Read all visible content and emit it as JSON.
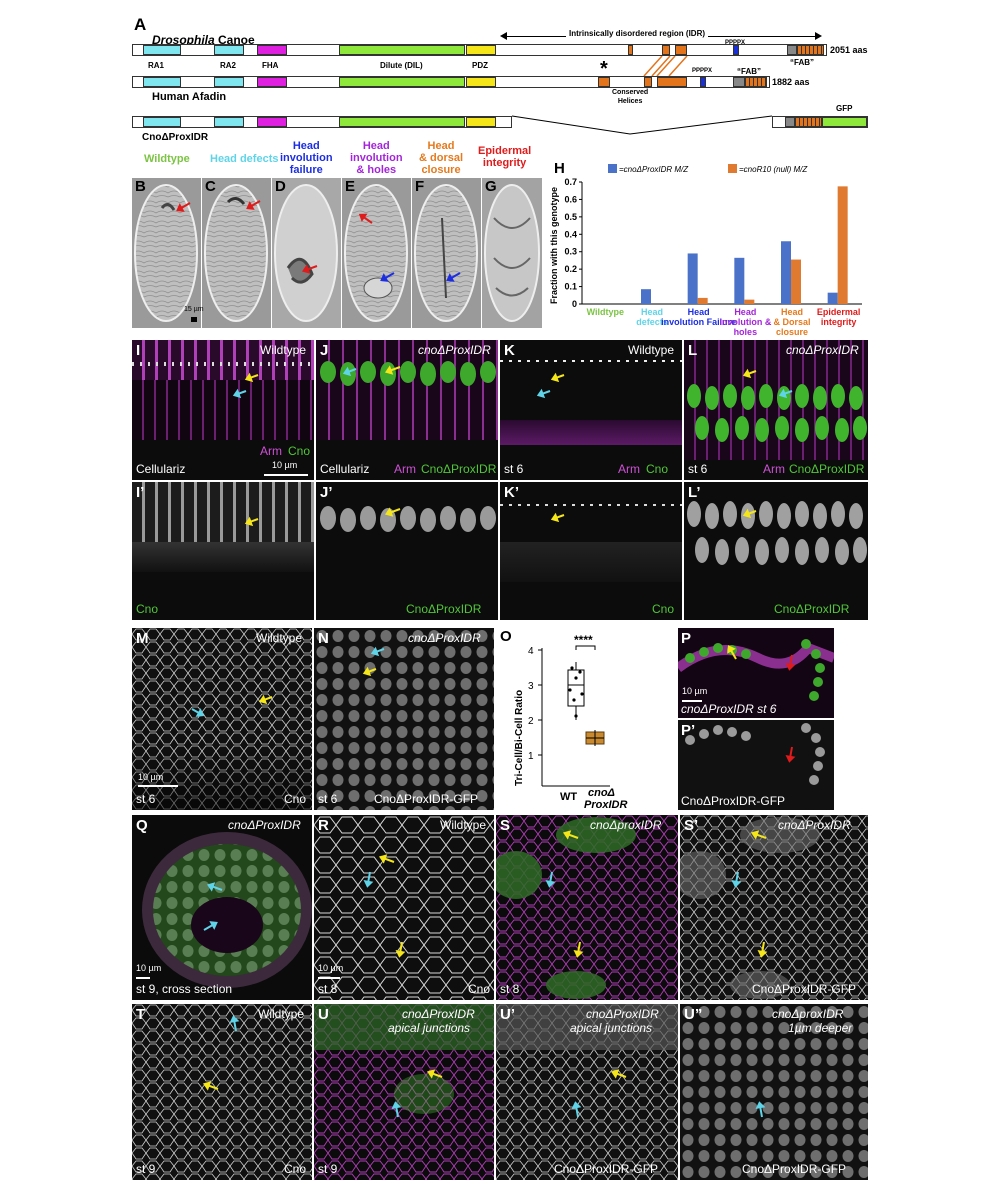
{
  "panelA": {
    "letter": "A",
    "canoe_title_italic": "Drosophila",
    "canoe_title": "Canoe",
    "idr_label": "Intrinsically disordered region (IDR)",
    "pppx_top": "PPPPX",
    "pppx_mid": "PPPPX",
    "fab_top": "“FAB”",
    "fab_mid": "“FAB”",
    "canoe_len": "2051 aas",
    "afadin_len": "1882 aas",
    "domains": [
      "RA1",
      "RA2",
      "FHA",
      "Dilute (DIL)",
      "PDZ"
    ],
    "afadin_title": "Human Afadin",
    "conserved": "Conserved\nHelices",
    "star": "*",
    "construct_label": "CnoΔProxIDR",
    "gfp": "GFP",
    "colors": {
      "ra": "#7fe6ef",
      "fha": "#e020e0",
      "dil": "#8ee83c",
      "pdz": "#f5e619",
      "idr": "#e3741c",
      "pro": "#1a2fd6",
      "fab": "#888888"
    }
  },
  "panelsBG": {
    "letters": [
      "B",
      "C",
      "D",
      "E",
      "F",
      "G"
    ],
    "titles": [
      "Wildtype",
      "Head defects",
      "Head\ninvolution\nfailure",
      "Head\ninvolution\n& holes",
      "Head\n& dorsal\nclosure",
      "Epidermal\nintegrity"
    ],
    "title_colors": [
      "#7cc444",
      "#5fd4e8",
      "#1c2ee0",
      "#a425d8",
      "#e57a1e",
      "#e01b1b"
    ],
    "scale": "15 µm"
  },
  "chart_data": {
    "type": "bar",
    "panel": "H",
    "categories": [
      "Wildtype",
      "Head defects",
      "Head involution Failure",
      "Head involution & holes",
      "Head & Dorsal closure",
      "Epidermal integrity"
    ],
    "category_colors": [
      "#7cc444",
      "#5fd4e8",
      "#1c2ee0",
      "#a425d8",
      "#e57a1e",
      "#e01b1b"
    ],
    "series": [
      {
        "name": "=cnoΔProxIDR M/Z",
        "color": "#4a72c8",
        "values": [
          0,
          0.085,
          0.29,
          0.265,
          0.36,
          0.065
        ]
      },
      {
        "name": "=cnoR10 (null) M/Z",
        "color": "#e07a30",
        "values": [
          0,
          0,
          0.035,
          0.025,
          0.255,
          0.675
        ]
      }
    ],
    "ylabel": "Fraction with this genotype",
    "ylim": [
      0,
      0.7
    ],
    "yticks": [
      "0",
      "0.1",
      "0.2",
      "0.3",
      "0.4",
      "0.5",
      "0.6",
      "0.7"
    ],
    "legend_position": "top"
  },
  "panelsIL": {
    "letters": [
      "I",
      "J",
      "K",
      "L",
      "I’",
      "J’",
      "K’",
      "L’"
    ],
    "I": {
      "genotype": "Wildtype",
      "stage": "Cellulariz",
      "arm": "Arm",
      "cno": "Cno",
      "scale": "10 µm"
    },
    "J": {
      "genotype": "cnoΔProxIDR",
      "stage": "Cellulariz",
      "arm": "Arm",
      "cno": "CnoΔProxIDR"
    },
    "K": {
      "genotype": "Wildtype",
      "stage": "st 6",
      "arm": "Arm",
      "cno": "Cno"
    },
    "L": {
      "genotype": "cnoΔProxIDR",
      "stage": "st 6",
      "arm": "Arm",
      "cno": "CnoΔProxIDR"
    },
    "bottom": [
      "Cno",
      "CnoΔProxIDR",
      "Cno",
      "CnoΔProxIDR"
    ]
  },
  "panelsMP": {
    "M": {
      "letter": "M",
      "genotype": "Wildtype",
      "stage": "st 6",
      "marker": "Cno",
      "scale": "10 µm"
    },
    "N": {
      "letter": "N",
      "genotype": "cnoΔProxIDR",
      "stage": "st 6",
      "marker": "CnoΔProxIDR-GFP"
    },
    "O": {
      "letter": "O",
      "ylabel": "Tri-Cell/Bi-Cell Ratio",
      "sig": "****",
      "yticks": [
        "1",
        "2",
        "3",
        "4"
      ],
      "xlabels": [
        "WT",
        "cnoΔ",
        "ProxIDR"
      ]
    },
    "P": {
      "letter": "P",
      "letter2": "P’",
      "scale": "10 µm",
      "caption": "cnoΔProxIDR st 6",
      "marker": "CnoΔProxIDR-GFP"
    }
  },
  "panelsQS": {
    "Q": {
      "letter": "Q",
      "genotype": "cnoΔProxIDR",
      "caption": "st 9, cross section",
      "scale": "10 µm"
    },
    "R": {
      "letter": "R",
      "genotype": "Wildtype",
      "stage": "st 8",
      "marker": "Cno",
      "scale": "10 µm"
    },
    "S": {
      "letter": "S",
      "genotype": "cnoΔproxIDR",
      "stage": "st 8"
    },
    "S2": {
      "letter": "S’",
      "genotype": "cnoΔProxIDR",
      "marker": "CnoΔProxIDR-GFP"
    }
  },
  "panelsTU": {
    "T": {
      "letter": "T",
      "genotype": "Wildtype",
      "stage": "st 9",
      "marker": "Cno"
    },
    "U": {
      "letter": "U",
      "genotype": "cnoΔProxIDR",
      "sub": "apical junctions",
      "stage": "st 9"
    },
    "U2": {
      "letter": "U’",
      "genotype": "cnoΔProxIDR",
      "sub": "apical junctions",
      "marker": "CnoΔProxIDR-GFP"
    },
    "U3": {
      "letter": "U”",
      "genotype": "cnoΔproxIDR",
      "sub": "1µm deeper",
      "marker": "CnoΔProxIDR-GFP"
    }
  }
}
